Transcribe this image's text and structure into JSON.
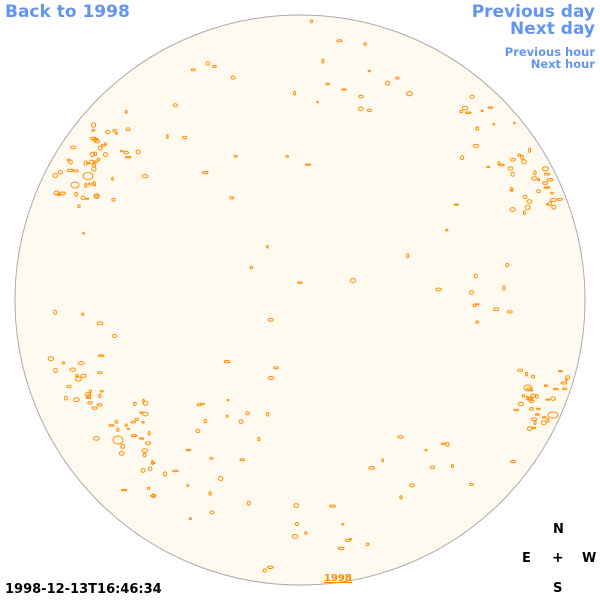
{
  "navigation": {
    "back_label": "Back to 1998",
    "previous_day_label": "Previous day",
    "next_day_label": "Next day",
    "previous_hour_label": "Previous hour",
    "next_hour_label": "Next hour"
  },
  "compass": {
    "north": "N",
    "east": "E",
    "center": "+",
    "west": "W",
    "south": "S"
  },
  "timestamp": "1998-12-13T16:46:34",
  "year_link": "1998",
  "colors": {
    "link": "#6495ed",
    "disk_fill": "#fffaf0",
    "disk_border": "#aaaaaa",
    "contour": "#ff8c00"
  }
}
